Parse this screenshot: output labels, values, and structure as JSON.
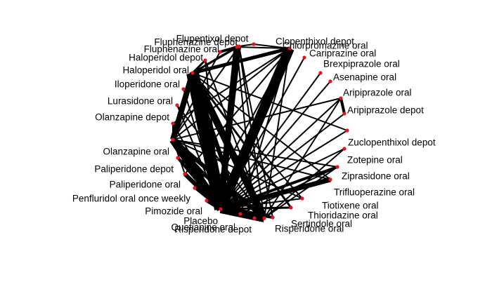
{
  "nodes": [
    {
      "id": "clopenthixol-depot",
      "label": "Clopenthixol depot"
    },
    {
      "id": "chlorpromazine-oral",
      "label": "Chlorpromazine oral"
    },
    {
      "id": "cariprazine-oral",
      "label": "Cariprazine oral"
    },
    {
      "id": "brexpiprazole-oral",
      "label": "Brexpiprazole oral"
    },
    {
      "id": "asenapine-oral",
      "label": "Asenapine oral"
    },
    {
      "id": "aripiprazole-oral",
      "label": "Aripiprazole oral"
    },
    {
      "id": "aripiprazole-depot",
      "label": "Aripiprazole depot"
    },
    {
      "id": "zuclopenthixol-depot",
      "label": "Zuclopenthixol depot"
    },
    {
      "id": "zotepine-oral",
      "label": "Zotepine oral"
    },
    {
      "id": "ziprasidone-oral",
      "label": "Ziprasidone oral"
    },
    {
      "id": "trifluoperazine-oral",
      "label": "Trifluoperazine oral"
    },
    {
      "id": "tiotixene-oral",
      "label": "Tiotixene oral"
    },
    {
      "id": "thioridazine-oral",
      "label": "Thioridazine oral"
    },
    {
      "id": "sertindole-oral",
      "label": "Sertindole oral"
    },
    {
      "id": "risperidone-oral",
      "label": "Risperidone oral"
    },
    {
      "id": "risperidone-depot",
      "label": "Risperidone depot"
    },
    {
      "id": "quetiapine-oral",
      "label": "Quetiapine oral"
    },
    {
      "id": "placebo",
      "label": "Placebo"
    },
    {
      "id": "pimozide-oral",
      "label": "Pimozide oral"
    },
    {
      "id": "penfluridol-oral-once-weekly",
      "label": "Penfluridol oral once weekly"
    },
    {
      "id": "paliperidone-oral",
      "label": "Paliperidone oral"
    },
    {
      "id": "paliperidone-depot",
      "label": "Paliperidone depot"
    },
    {
      "id": "olanzapine-oral",
      "label": "Olanzapine oral"
    },
    {
      "id": "olanzapine-depot",
      "label": "Olanzapine depot"
    },
    {
      "id": "lurasidone-oral",
      "label": "Lurasidone oral"
    },
    {
      "id": "iloperidone-oral",
      "label": "Iloperidone oral"
    },
    {
      "id": "haloperidol-oral",
      "label": "Haloperidol oral"
    },
    {
      "id": "haloperidol-depot",
      "label": "Haloperidol depot"
    },
    {
      "id": "fluphenazine-oral",
      "label": "Fluphenazine oral"
    },
    {
      "id": "fluphenazine-depot",
      "label": "Fluphenazine depot"
    },
    {
      "id": "flupentixol-depot",
      "label": "Flupentixol depot"
    }
  ],
  "edges": [
    {
      "a": "haloperidol-oral",
      "b": "placebo",
      "w": 18
    },
    {
      "a": "chlorpromazine-oral",
      "b": "placebo",
      "w": 14
    },
    {
      "a": "risperidone-oral",
      "b": "placebo",
      "w": 12
    },
    {
      "a": "olanzapine-oral",
      "b": "placebo",
      "w": 11
    },
    {
      "a": "haloperidol-oral",
      "b": "risperidone-oral",
      "w": 10
    },
    {
      "a": "haloperidol-oral",
      "b": "olanzapine-oral",
      "w": 8
    },
    {
      "a": "trifluoperazine-oral",
      "b": "placebo",
      "w": 7
    },
    {
      "a": "fluphenazine-depot",
      "b": "placebo",
      "w": 9
    },
    {
      "a": "flupentixol-depot",
      "b": "placebo",
      "w": 6
    },
    {
      "a": "chlorpromazine-oral",
      "b": "haloperidol-oral",
      "w": 5
    },
    {
      "a": "olanzapine-oral",
      "b": "risperidone-oral",
      "w": 6
    },
    {
      "a": "haloperidol-oral",
      "b": "quetiapine-oral",
      "w": 6
    },
    {
      "a": "placebo",
      "b": "quetiapine-oral",
      "w": 6
    },
    {
      "a": "placebo",
      "b": "risperidone-depot",
      "w": 6
    },
    {
      "a": "placebo",
      "b": "paliperidone-oral",
      "w": 6
    },
    {
      "a": "placebo",
      "b": "pimozide-oral",
      "w": 5
    },
    {
      "a": "placebo",
      "b": "paliperidone-depot",
      "w": 4
    },
    {
      "a": "placebo",
      "b": "ziprasidone-oral",
      "w": 4
    },
    {
      "a": "aripiprazole-oral",
      "b": "aripiprazole-depot",
      "w": 4
    },
    {
      "a": "fluphenazine-depot",
      "b": "fluphenazine-oral",
      "w": 4
    },
    {
      "a": "haloperidol-oral",
      "b": "haloperidol-depot",
      "w": 3
    },
    {
      "a": "olanzapine-oral",
      "b": "quetiapine-oral",
      "w": 4
    },
    {
      "a": "chlorpromazine-oral",
      "b": "clopenthixol-depot",
      "w": 2
    },
    {
      "a": "placebo",
      "b": "sertindole-oral",
      "w": 4
    },
    {
      "a": "placebo",
      "b": "thioridazine-oral",
      "w": 3
    },
    {
      "a": "placebo",
      "b": "penfluridol-oral-once-weekly",
      "w": 3
    },
    {
      "a": "placebo",
      "b": "olanzapine-depot",
      "w": 2
    },
    {
      "a": "haloperidol-oral",
      "b": "thioridazine-oral",
      "w": 3
    },
    {
      "a": "haloperidol-oral",
      "b": "tiotixene-oral",
      "w": 2
    },
    {
      "a": "haloperidol-oral",
      "b": "zuclopenthixol-depot",
      "w": 2
    },
    {
      "a": "haloperidol-oral",
      "b": "trifluoperazine-oral",
      "w": 2
    },
    {
      "a": "haloperidol-oral",
      "b": "fluphenazine-depot",
      "w": 3
    },
    {
      "a": "haloperidol-oral",
      "b": "flupentixol-depot",
      "w": 3
    },
    {
      "a": "chlorpromazine-oral",
      "b": "olanzapine-oral",
      "w": 2
    },
    {
      "a": "chlorpromazine-oral",
      "b": "risperidone-oral",
      "w": 2
    },
    {
      "a": "chlorpromazine-oral",
      "b": "paliperidone-oral",
      "w": 2
    },
    {
      "a": "chlorpromazine-oral",
      "b": "pimozide-oral",
      "w": 2
    },
    {
      "a": "chlorpromazine-oral",
      "b": "quetiapine-oral",
      "w": 2
    },
    {
      "a": "chlorpromazine-oral",
      "b": "olanzapine-depot",
      "w": 2
    },
    {
      "a": "chlorpromazine-oral",
      "b": "fluphenazine-depot",
      "w": 2
    },
    {
      "a": "flupentixol-depot",
      "b": "clopenthixol-depot",
      "w": 2
    },
    {
      "a": "flupentixol-depot",
      "b": "olanzapine-oral",
      "w": 2
    },
    {
      "a": "flupentixol-depot",
      "b": "risperidone-oral",
      "w": 2
    },
    {
      "a": "flupentixol-depot",
      "b": "sertindole-oral",
      "w": 2
    },
    {
      "a": "fluphenazine-depot",
      "b": "risperidone-depot",
      "w": 2
    },
    {
      "a": "fluphenazine-oral",
      "b": "olanzapine-oral",
      "w": 2
    },
    {
      "a": "haloperidol-depot",
      "b": "placebo",
      "w": 2
    },
    {
      "a": "haloperidol-depot",
      "b": "risperidone-oral",
      "w": 2
    },
    {
      "a": "iloperidone-oral",
      "b": "placebo",
      "w": 2
    },
    {
      "a": "lurasidone-oral",
      "b": "placebo",
      "w": 2
    },
    {
      "a": "lurasidone-oral",
      "b": "risperidone-oral",
      "w": 2
    },
    {
      "a": "olanzapine-depot",
      "b": "olanzapine-oral",
      "w": 2
    },
    {
      "a": "olanzapine-oral",
      "b": "aripiprazole-oral",
      "w": 2
    },
    {
      "a": "olanzapine-oral",
      "b": "ziprasidone-oral",
      "w": 2
    },
    {
      "a": "olanzapine-oral",
      "b": "paliperidone-oral",
      "w": 2
    },
    {
      "a": "olanzapine-oral",
      "b": "tiotixene-oral",
      "w": 2
    },
    {
      "a": "olanzapine-oral",
      "b": "trifluoperazine-oral",
      "w": 2
    },
    {
      "a": "risperidone-oral",
      "b": "aripiprazole-oral",
      "w": 2
    },
    {
      "a": "risperidone-oral",
      "b": "ziprasidone-oral",
      "w": 2
    },
    {
      "a": "risperidone-oral",
      "b": "quetiapine-oral",
      "w": 2
    },
    {
      "a": "risperidone-oral",
      "b": "zotepine-oral",
      "w": 2
    },
    {
      "a": "risperidone-oral",
      "b": "pimozide-oral",
      "w": 2
    },
    {
      "a": "risperidone-oral",
      "b": "risperidone-depot",
      "w": 2
    },
    {
      "a": "paliperidone-depot",
      "b": "risperidone-oral",
      "w": 2
    },
    {
      "a": "quetiapine-oral",
      "b": "ziprasidone-oral",
      "w": 2
    },
    {
      "a": "placebo",
      "b": "cariprazine-oral",
      "w": 2
    },
    {
      "a": "placebo",
      "b": "brexpiprazole-oral",
      "w": 2
    },
    {
      "a": "placebo",
      "b": "asenapine-oral",
      "w": 2
    },
    {
      "a": "placebo",
      "b": "aripiprazole-oral",
      "w": 2
    },
    {
      "a": "placebo",
      "b": "aripiprazole-depot",
      "w": 2
    },
    {
      "a": "placebo",
      "b": "tiotixene-oral",
      "w": 2
    },
    {
      "a": "placebo",
      "b": "zotepine-oral",
      "w": 2
    },
    {
      "a": "placebo",
      "b": "zuclopenthixol-depot",
      "w": 2
    }
  ]
}
